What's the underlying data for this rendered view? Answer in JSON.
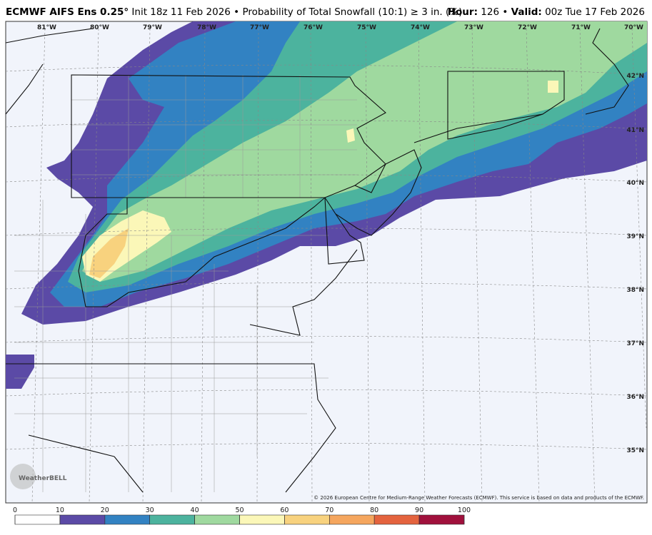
{
  "header": {
    "model": "ECMWF AIFS Ens 0.25°",
    "init": "Init 18z 11 Feb 2026",
    "separator": "•",
    "product": "Probability of Total Snowfall (10:1) ≥ 3 in. (%)",
    "hour_label": "Hour:",
    "hour": 126,
    "valid_label": "Valid:",
    "valid": "00z Tue 17 Feb 2026"
  },
  "map": {
    "longitude_labels": [
      "81°W",
      "80°W",
      "79°W",
      "78°W",
      "77°W",
      "76°W",
      "75°W",
      "74°W",
      "73°W",
      "72°W",
      "71°W",
      "70°W"
    ],
    "latitude_labels": [
      "42°N",
      "41°N",
      "40°N",
      "39°N",
      "38°N",
      "37°N",
      "36°N",
      "35°N"
    ],
    "logo": "WeatherBELL",
    "copyright": "© 2026 European Centre for Medium-Range Weather Forecasts (ECMWF). This service is based on data and products of the ECMWF."
  },
  "colorbar": {
    "ticks": [
      0,
      10,
      20,
      30,
      40,
      50,
      60,
      70,
      80,
      90,
      100
    ],
    "colors": [
      "#ffffff",
      "#5b4aa6",
      "#3282c2",
      "#4cb39e",
      "#9fd99f",
      "#fbf7b8",
      "#f8d27e",
      "#f5a65e",
      "#e4633e",
      "#a0103c"
    ]
  }
}
